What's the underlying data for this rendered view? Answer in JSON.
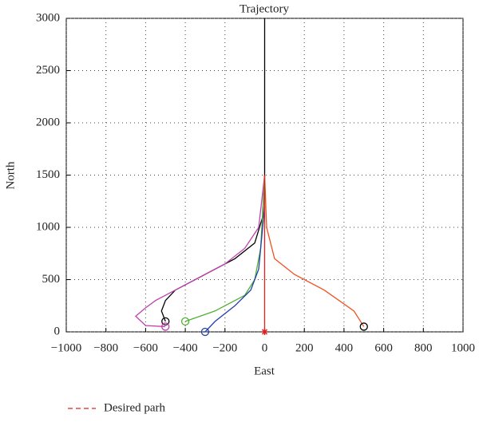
{
  "chart_data": {
    "type": "line",
    "title": "Trajectory",
    "xlabel": "East",
    "ylabel": "North",
    "xlim": [
      -1000,
      1000
    ],
    "ylim": [
      0,
      3000
    ],
    "xticks": [
      {
        "value": -1000,
        "label": "−1000"
      },
      {
        "value": -800,
        "label": "−800"
      },
      {
        "value": -600,
        "label": "−600"
      },
      {
        "value": -400,
        "label": "−400"
      },
      {
        "value": -200,
        "label": "−200"
      },
      0,
      200,
      400,
      600,
      800,
      1000
    ],
    "yticks": [
      0,
      500,
      1000,
      1500,
      2000,
      2500,
      3000
    ],
    "grid": true,
    "legend": "bottom",
    "series": [
      {
        "color": "#000000",
        "start_marker": "o",
        "marker_color": "#000000",
        "x": [
          -500,
          -520,
          -500,
          -450,
          -300,
          -150,
          -50,
          -10,
          0,
          0
        ],
        "values": [
          100,
          200,
          300,
          400,
          550,
          700,
          850,
          1100,
          1500,
          3000
        ]
      },
      {
        "color": "#c040b0",
        "start_marker": "o",
        "marker_color": "#c040b0",
        "x": [
          -500,
          -600,
          -650,
          -600,
          -550,
          -400,
          -200,
          -100,
          -30,
          0
        ],
        "values": [
          50,
          60,
          150,
          230,
          300,
          450,
          650,
          800,
          1000,
          1500
        ]
      },
      {
        "color": "#50b030",
        "start_marker": "o",
        "marker_color": "#50b030",
        "x": [
          -400,
          -250,
          -100,
          -50,
          -20,
          0
        ],
        "values": [
          100,
          200,
          350,
          500,
          800,
          1500
        ]
      },
      {
        "color": "#2040b0",
        "start_marker": "o",
        "marker_color": "#2040b0",
        "x": [
          -300,
          -250,
          -150,
          -70,
          -30,
          0
        ],
        "values": [
          0,
          100,
          250,
          400,
          600,
          1200
        ]
      },
      {
        "color": "#f05020",
        "start_marker": "o",
        "marker_color": "#000000",
        "x": [
          500,
          450,
          300,
          150,
          50,
          10,
          0
        ],
        "values": [
          50,
          200,
          400,
          550,
          700,
          1000,
          1500
        ]
      },
      {
        "name": "Desired parh",
        "color": "#e02020",
        "start_marker": "*",
        "marker_color": "#e02020",
        "x": [
          0,
          0
        ],
        "values": [
          0,
          1500
        ]
      }
    ]
  }
}
